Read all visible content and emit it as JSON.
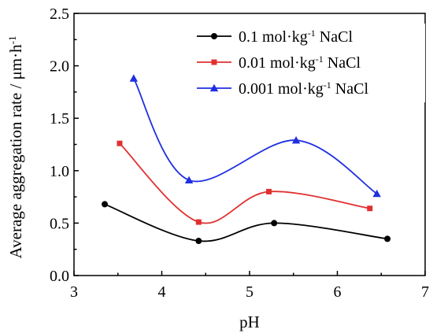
{
  "chart_data": {
    "type": "line",
    "xlabel": "pH",
    "ylabel": "Average aggregation rate / μm·h",
    "ylabel_superscript": "-1",
    "xlim": [
      3,
      7
    ],
    "ylim": [
      0.0,
      2.5
    ],
    "x_ticks": [
      "3",
      "4",
      "5",
      "6",
      "7"
    ],
    "y_ticks": [
      "0.0",
      "0.5",
      "1.0",
      "1.5",
      "2.0",
      "2.5"
    ],
    "grid": false,
    "legend_position": "top-right",
    "series": [
      {
        "name": "0.1 mol·kg",
        "name_superscript": "-1",
        "name_suffix": " NaCl",
        "color": "#000000",
        "marker": "circle",
        "x": [
          3.35,
          4.42,
          5.28,
          6.57
        ],
        "y": [
          0.68,
          0.33,
          0.5,
          0.35
        ]
      },
      {
        "name": "0.01 mol·kg",
        "name_superscript": "-1",
        "name_suffix": " NaCl",
        "color": "#e03030",
        "marker": "square",
        "x": [
          3.52,
          4.42,
          5.22,
          6.37
        ],
        "y": [
          1.26,
          0.51,
          0.8,
          0.64
        ]
      },
      {
        "name": "0.001 mol·kg",
        "name_superscript": "-1",
        "name_suffix": " NaCl",
        "color": "#1f2fe0",
        "marker": "triangle",
        "x": [
          3.68,
          4.31,
          5.53,
          6.45
        ],
        "y": [
          1.88,
          0.91,
          1.29,
          0.78
        ]
      }
    ]
  }
}
